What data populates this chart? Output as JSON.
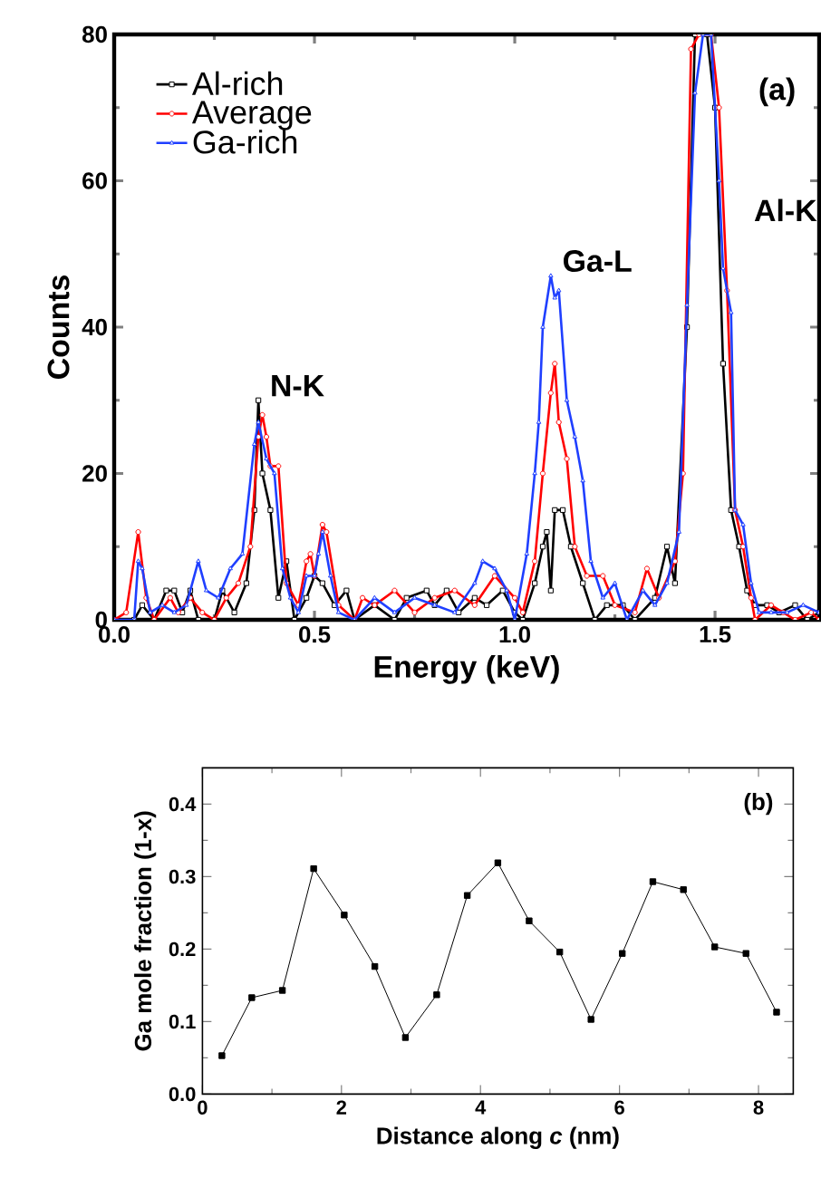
{
  "chart_data": [
    {
      "type": "line",
      "xlabel": "Energy (keV)",
      "ylabel": "Counts",
      "xlim": [
        0,
        1.76
      ],
      "ylim": [
        0,
        80
      ],
      "xticks": [
        {
          "value": 0,
          "label": "0.0"
        },
        0.5,
        {
          "value": 1,
          "label": "1.0"
        },
        1.5
      ],
      "yticks": [
        0,
        20,
        40,
        60,
        80
      ],
      "legend": "top left",
      "annotations": [
        "(a)",
        {
          "text": "N-K",
          "x": 0.37,
          "y": 30
        },
        {
          "text": "Ga-L",
          "x": 1.1,
          "y": 47
        },
        "Al-K"
      ],
      "series": [
        {
          "name": "Al-rich",
          "color": "#000000",
          "marker": "square",
          "x": [
            0.0,
            0.05,
            0.07,
            0.1,
            0.13,
            0.15,
            0.17,
            0.19,
            0.21,
            0.25,
            0.27,
            0.3,
            0.33,
            0.35,
            0.36,
            0.37,
            0.39,
            0.41,
            0.43,
            0.45,
            0.48,
            0.5,
            0.52,
            0.55,
            0.58,
            0.6,
            0.65,
            0.7,
            0.73,
            0.78,
            0.8,
            0.83,
            0.86,
            0.9,
            0.93,
            0.97,
            1.0,
            1.02,
            1.05,
            1.07,
            1.08,
            1.09,
            1.1,
            1.12,
            1.14,
            1.17,
            1.2,
            1.23,
            1.27,
            1.3,
            1.35,
            1.38,
            1.4,
            1.43,
            1.45,
            1.48,
            1.5,
            1.52,
            1.54,
            1.56,
            1.58,
            1.6,
            1.63,
            1.66,
            1.7,
            1.73,
            1.76
          ],
          "values": [
            0,
            0,
            2,
            0,
            4,
            4,
            1,
            4,
            0,
            0,
            4,
            1,
            5,
            15,
            30,
            20,
            15,
            3,
            8,
            0,
            3,
            6,
            5,
            2,
            4,
            0,
            2,
            0,
            3,
            4,
            2,
            4,
            1,
            3,
            2,
            4,
            1,
            0,
            5,
            10,
            12,
            4,
            15,
            15,
            10,
            5,
            0,
            2,
            2,
            0,
            3,
            10,
            5,
            40,
            80,
            80,
            70,
            35,
            15,
            10,
            4,
            2,
            2,
            1,
            2,
            0,
            1
          ]
        },
        {
          "name": "Average",
          "color": "#ff0000",
          "marker": "circle",
          "x": [
            0.0,
            0.03,
            0.06,
            0.08,
            0.1,
            0.14,
            0.16,
            0.19,
            0.22,
            0.25,
            0.28,
            0.31,
            0.34,
            0.36,
            0.37,
            0.38,
            0.39,
            0.41,
            0.43,
            0.46,
            0.48,
            0.49,
            0.5,
            0.52,
            0.53,
            0.56,
            0.6,
            0.62,
            0.65,
            0.7,
            0.75,
            0.8,
            0.85,
            0.9,
            0.95,
            1.0,
            1.02,
            1.05,
            1.07,
            1.09,
            1.1,
            1.11,
            1.13,
            1.15,
            1.18,
            1.22,
            1.25,
            1.3,
            1.33,
            1.36,
            1.4,
            1.42,
            1.44,
            1.46,
            1.49,
            1.51,
            1.53,
            1.55,
            1.57,
            1.59,
            1.6,
            1.64,
            1.67,
            1.7,
            1.74,
            1.76
          ],
          "values": [
            0,
            1,
            12,
            3,
            0,
            3,
            1,
            3,
            1,
            0,
            3,
            5,
            10,
            25,
            28,
            25,
            21,
            21,
            5,
            2,
            8,
            9,
            6,
            13,
            12,
            2,
            0,
            3,
            2,
            4,
            1,
            3,
            4,
            2,
            6,
            3,
            1,
            8,
            20,
            31,
            35,
            27,
            22,
            10,
            6,
            6,
            2,
            1,
            7,
            3,
            8,
            20,
            78,
            80,
            80,
            70,
            45,
            15,
            10,
            3,
            0,
            2,
            1,
            0,
            1,
            0
          ]
        },
        {
          "name": "Ga-rich",
          "color": "#1f3fff",
          "marker": "triangle",
          "x": [
            0.0,
            0.05,
            0.06,
            0.07,
            0.09,
            0.12,
            0.15,
            0.18,
            0.21,
            0.23,
            0.26,
            0.29,
            0.32,
            0.35,
            0.36,
            0.38,
            0.4,
            0.42,
            0.44,
            0.46,
            0.48,
            0.5,
            0.51,
            0.52,
            0.54,
            0.56,
            0.6,
            0.65,
            0.7,
            0.75,
            0.8,
            0.85,
            0.9,
            0.92,
            0.95,
            0.98,
            1.0,
            1.03,
            1.05,
            1.06,
            1.07,
            1.09,
            1.1,
            1.11,
            1.13,
            1.15,
            1.17,
            1.19,
            1.22,
            1.25,
            1.28,
            1.32,
            1.35,
            1.38,
            1.41,
            1.43,
            1.45,
            1.47,
            1.49,
            1.51,
            1.52,
            1.54,
            1.55,
            1.57,
            1.59,
            1.61,
            1.64,
            1.68,
            1.72,
            1.76
          ],
          "values": [
            0,
            0,
            8,
            7,
            1,
            2,
            1,
            2,
            8,
            4,
            3,
            7,
            9,
            24,
            27,
            22,
            20,
            7,
            3,
            1,
            6,
            6,
            9,
            12,
            6,
            1,
            0,
            3,
            1,
            3,
            2,
            1,
            5,
            8,
            7,
            4,
            0,
            9,
            20,
            27,
            40,
            47,
            44,
            45,
            30,
            25,
            19,
            8,
            3,
            5,
            0,
            4,
            2,
            5,
            12,
            43,
            72,
            80,
            80,
            60,
            48,
            42,
            15,
            13,
            5,
            1,
            1,
            1,
            2,
            1
          ]
        }
      ]
    },
    {
      "type": "line",
      "xlabel": "Distance along *c* (nm)",
      "ylabel": "Ga mole fraction (1-x)",
      "xlim": [
        0,
        8.5
      ],
      "ylim": [
        0,
        0.45
      ],
      "xticks": [
        0,
        2,
        4,
        6,
        8
      ],
      "yticks": [
        {
          "value": 0,
          "label": "0.0"
        },
        0.1,
        0.2,
        0.3,
        0.4
      ],
      "annotations": [
        "(b)"
      ],
      "series": [
        {
          "color": "#000000",
          "marker": "square",
          "x": [
            0.28,
            0.71,
            1.15,
            1.6,
            2.04,
            2.48,
            2.92,
            3.37,
            3.81,
            4.25,
            4.7,
            5.14,
            5.59,
            6.04,
            6.48,
            6.92,
            7.37,
            7.82,
            8.26
          ],
          "values": [
            0.053,
            0.133,
            0.143,
            0.311,
            0.247,
            0.176,
            0.078,
            0.137,
            0.274,
            0.319,
            0.239,
            0.196,
            0.103,
            0.194,
            0.293,
            0.282,
            0.203,
            0.194,
            0.113
          ]
        }
      ]
    }
  ]
}
